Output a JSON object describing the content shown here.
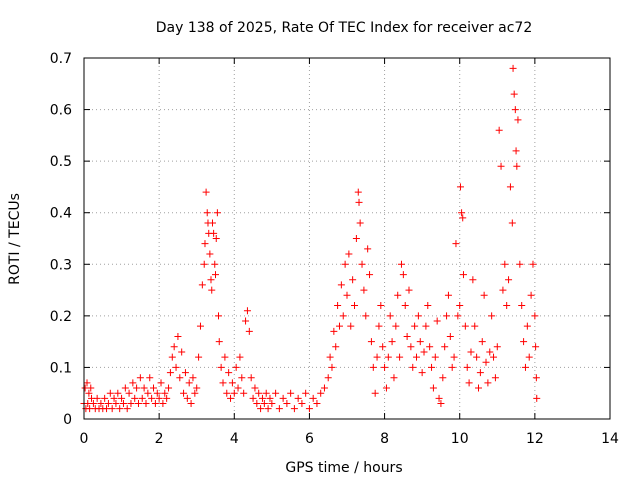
{
  "chart_data": {
    "type": "scatter",
    "title": "Day 138 of 2025, Rate Of TEC Index for receiver ac72",
    "xlabel": "GPS time / hours",
    "ylabel": "ROTI / TECUs",
    "xlim": [
      0,
      14
    ],
    "ylim": [
      0,
      0.7
    ],
    "x_ticks": [
      0,
      2,
      4,
      6,
      8,
      10,
      12,
      14
    ],
    "x_tick_labels": [
      "0",
      "2",
      "4",
      "6",
      "8",
      "10",
      "12",
      "14"
    ],
    "y_ticks": [
      0,
      0.1,
      0.2,
      0.3,
      0.4,
      0.5,
      0.6,
      0.7
    ],
    "y_tick_labels": [
      "0",
      "0.1",
      "0.2",
      "0.3",
      "0.4",
      "0.5",
      "0.6",
      "0.7"
    ],
    "grid": true,
    "marker": "+",
    "marker_color": "#ff0000",
    "series": [
      {
        "points": [
          [
            0.0,
            0.03
          ],
          [
            0.03,
            0.06
          ],
          [
            0.05,
            0.02
          ],
          [
            0.08,
            0.07
          ],
          [
            0.1,
            0.03
          ],
          [
            0.13,
            0.05
          ],
          [
            0.15,
            0.02
          ],
          [
            0.18,
            0.06
          ],
          [
            0.2,
            0.04
          ],
          [
            0.25,
            0.03
          ],
          [
            0.3,
            0.02
          ],
          [
            0.35,
            0.04
          ],
          [
            0.4,
            0.02
          ],
          [
            0.45,
            0.03
          ],
          [
            0.5,
            0.02
          ],
          [
            0.55,
            0.04
          ],
          [
            0.6,
            0.02
          ],
          [
            0.65,
            0.03
          ],
          [
            0.7,
            0.05
          ],
          [
            0.75,
            0.02
          ],
          [
            0.8,
            0.04
          ],
          [
            0.85,
            0.03
          ],
          [
            0.9,
            0.05
          ],
          [
            0.95,
            0.02
          ],
          [
            1.0,
            0.04
          ],
          [
            1.05,
            0.03
          ],
          [
            1.1,
            0.06
          ],
          [
            1.15,
            0.02
          ],
          [
            1.2,
            0.05
          ],
          [
            1.25,
            0.03
          ],
          [
            1.3,
            0.07
          ],
          [
            1.35,
            0.04
          ],
          [
            1.4,
            0.06
          ],
          [
            1.45,
            0.03
          ],
          [
            1.5,
            0.08
          ],
          [
            1.55,
            0.04
          ],
          [
            1.6,
            0.06
          ],
          [
            1.65,
            0.03
          ],
          [
            1.7,
            0.05
          ],
          [
            1.75,
            0.08
          ],
          [
            1.8,
            0.04
          ],
          [
            1.85,
            0.06
          ],
          [
            1.9,
            0.03
          ],
          [
            1.95,
            0.05
          ],
          [
            2.0,
            0.04
          ],
          [
            2.05,
            0.07
          ],
          [
            2.1,
            0.03
          ],
          [
            2.15,
            0.05
          ],
          [
            2.2,
            0.04
          ],
          [
            2.25,
            0.06
          ],
          [
            2.3,
            0.09
          ],
          [
            2.35,
            0.12
          ],
          [
            2.4,
            0.14
          ],
          [
            2.45,
            0.1
          ],
          [
            2.5,
            0.16
          ],
          [
            2.55,
            0.08
          ],
          [
            2.6,
            0.13
          ],
          [
            2.65,
            0.05
          ],
          [
            2.7,
            0.09
          ],
          [
            2.75,
            0.04
          ],
          [
            2.8,
            0.07
          ],
          [
            2.85,
            0.03
          ],
          [
            2.9,
            0.08
          ],
          [
            2.95,
            0.05
          ],
          [
            3.0,
            0.06
          ],
          [
            3.05,
            0.12
          ],
          [
            3.1,
            0.18
          ],
          [
            3.15,
            0.26
          ],
          [
            3.2,
            0.3
          ],
          [
            3.22,
            0.34
          ],
          [
            3.25,
            0.44
          ],
          [
            3.28,
            0.4
          ],
          [
            3.3,
            0.38
          ],
          [
            3.32,
            0.36
          ],
          [
            3.35,
            0.32
          ],
          [
            3.38,
            0.27
          ],
          [
            3.4,
            0.25
          ],
          [
            3.42,
            0.38
          ],
          [
            3.45,
            0.36
          ],
          [
            3.48,
            0.3
          ],
          [
            3.5,
            0.28
          ],
          [
            3.52,
            0.35
          ],
          [
            3.55,
            0.4
          ],
          [
            3.58,
            0.2
          ],
          [
            3.6,
            0.15
          ],
          [
            3.65,
            0.1
          ],
          [
            3.7,
            0.07
          ],
          [
            3.75,
            0.12
          ],
          [
            3.8,
            0.05
          ],
          [
            3.85,
            0.09
          ],
          [
            3.9,
            0.04
          ],
          [
            3.95,
            0.07
          ],
          [
            4.0,
            0.05
          ],
          [
            4.05,
            0.1
          ],
          [
            4.1,
            0.06
          ],
          [
            4.15,
            0.12
          ],
          [
            4.2,
            0.08
          ],
          [
            4.25,
            0.05
          ],
          [
            4.3,
            0.19
          ],
          [
            4.35,
            0.21
          ],
          [
            4.4,
            0.17
          ],
          [
            4.45,
            0.08
          ],
          [
            4.5,
            0.04
          ],
          [
            4.55,
            0.06
          ],
          [
            4.6,
            0.03
          ],
          [
            4.65,
            0.05
          ],
          [
            4.7,
            0.02
          ],
          [
            4.75,
            0.04
          ],
          [
            4.8,
            0.03
          ],
          [
            4.85,
            0.05
          ],
          [
            4.9,
            0.02
          ],
          [
            4.95,
            0.04
          ],
          [
            5.0,
            0.03
          ],
          [
            5.1,
            0.05
          ],
          [
            5.2,
            0.02
          ],
          [
            5.3,
            0.04
          ],
          [
            5.4,
            0.03
          ],
          [
            5.5,
            0.05
          ],
          [
            5.6,
            0.02
          ],
          [
            5.7,
            0.04
          ],
          [
            5.8,
            0.03
          ],
          [
            5.9,
            0.05
          ],
          [
            6.0,
            0.02
          ],
          [
            6.1,
            0.04
          ],
          [
            6.2,
            0.03
          ],
          [
            6.3,
            0.05
          ],
          [
            6.4,
            0.06
          ],
          [
            6.5,
            0.08
          ],
          [
            6.55,
            0.12
          ],
          [
            6.6,
            0.1
          ],
          [
            6.65,
            0.17
          ],
          [
            6.7,
            0.14
          ],
          [
            6.75,
            0.22
          ],
          [
            6.8,
            0.18
          ],
          [
            6.85,
            0.26
          ],
          [
            6.9,
            0.2
          ],
          [
            6.95,
            0.3
          ],
          [
            7.0,
            0.24
          ],
          [
            7.05,
            0.32
          ],
          [
            7.1,
            0.18
          ],
          [
            7.15,
            0.27
          ],
          [
            7.2,
            0.22
          ],
          [
            7.25,
            0.35
          ],
          [
            7.3,
            0.44
          ],
          [
            7.32,
            0.42
          ],
          [
            7.35,
            0.38
          ],
          [
            7.4,
            0.3
          ],
          [
            7.45,
            0.25
          ],
          [
            7.5,
            0.2
          ],
          [
            7.55,
            0.33
          ],
          [
            7.6,
            0.28
          ],
          [
            7.65,
            0.15
          ],
          [
            7.7,
            0.1
          ],
          [
            7.75,
            0.05
          ],
          [
            7.8,
            0.12
          ],
          [
            7.85,
            0.18
          ],
          [
            7.9,
            0.22
          ],
          [
            7.95,
            0.14
          ],
          [
            8.0,
            0.1
          ],
          [
            8.05,
            0.06
          ],
          [
            8.1,
            0.12
          ],
          [
            8.15,
            0.2
          ],
          [
            8.2,
            0.15
          ],
          [
            8.25,
            0.08
          ],
          [
            8.3,
            0.18
          ],
          [
            8.35,
            0.24
          ],
          [
            8.4,
            0.12
          ],
          [
            8.45,
            0.3
          ],
          [
            8.5,
            0.28
          ],
          [
            8.55,
            0.22
          ],
          [
            8.6,
            0.16
          ],
          [
            8.65,
            0.25
          ],
          [
            8.7,
            0.14
          ],
          [
            8.75,
            0.1
          ],
          [
            8.8,
            0.18
          ],
          [
            8.85,
            0.12
          ],
          [
            8.9,
            0.2
          ],
          [
            8.95,
            0.15
          ],
          [
            9.0,
            0.09
          ],
          [
            9.05,
            0.13
          ],
          [
            9.1,
            0.18
          ],
          [
            9.15,
            0.22
          ],
          [
            9.2,
            0.14
          ],
          [
            9.25,
            0.1
          ],
          [
            9.3,
            0.06
          ],
          [
            9.35,
            0.12
          ],
          [
            9.4,
            0.19
          ],
          [
            9.45,
            0.04
          ],
          [
            9.5,
            0.03
          ],
          [
            9.55,
            0.08
          ],
          [
            9.6,
            0.14
          ],
          [
            9.65,
            0.2
          ],
          [
            9.7,
            0.24
          ],
          [
            9.75,
            0.16
          ],
          [
            9.8,
            0.1
          ],
          [
            9.85,
            0.12
          ],
          [
            9.9,
            0.34
          ],
          [
            9.95,
            0.2
          ],
          [
            10.0,
            0.22
          ],
          [
            10.02,
            0.45
          ],
          [
            10.05,
            0.4
          ],
          [
            10.08,
            0.39
          ],
          [
            10.1,
            0.28
          ],
          [
            10.15,
            0.18
          ],
          [
            10.2,
            0.1
          ],
          [
            10.25,
            0.07
          ],
          [
            10.3,
            0.13
          ],
          [
            10.35,
            0.27
          ],
          [
            10.4,
            0.18
          ],
          [
            10.45,
            0.12
          ],
          [
            10.5,
            0.06
          ],
          [
            10.55,
            0.09
          ],
          [
            10.6,
            0.15
          ],
          [
            10.65,
            0.24
          ],
          [
            10.7,
            0.11
          ],
          [
            10.75,
            0.07
          ],
          [
            10.8,
            0.13
          ],
          [
            10.85,
            0.2
          ],
          [
            10.9,
            0.12
          ],
          [
            10.95,
            0.08
          ],
          [
            11.0,
            0.14
          ],
          [
            11.05,
            0.56
          ],
          [
            11.1,
            0.49
          ],
          [
            11.15,
            0.25
          ],
          [
            11.2,
            0.3
          ],
          [
            11.25,
            0.22
          ],
          [
            11.3,
            0.27
          ],
          [
            11.35,
            0.45
          ],
          [
            11.4,
            0.38
          ],
          [
            11.42,
            0.68
          ],
          [
            11.45,
            0.63
          ],
          [
            11.48,
            0.6
          ],
          [
            11.5,
            0.52
          ],
          [
            11.52,
            0.49
          ],
          [
            11.55,
            0.58
          ],
          [
            11.6,
            0.3
          ],
          [
            11.65,
            0.22
          ],
          [
            11.7,
            0.15
          ],
          [
            11.75,
            0.1
          ],
          [
            11.8,
            0.18
          ],
          [
            11.85,
            0.12
          ],
          [
            11.9,
            0.24
          ],
          [
            11.95,
            0.3
          ],
          [
            12.0,
            0.2
          ],
          [
            12.02,
            0.14
          ],
          [
            12.04,
            0.08
          ],
          [
            12.05,
            0.04
          ]
        ]
      }
    ]
  }
}
